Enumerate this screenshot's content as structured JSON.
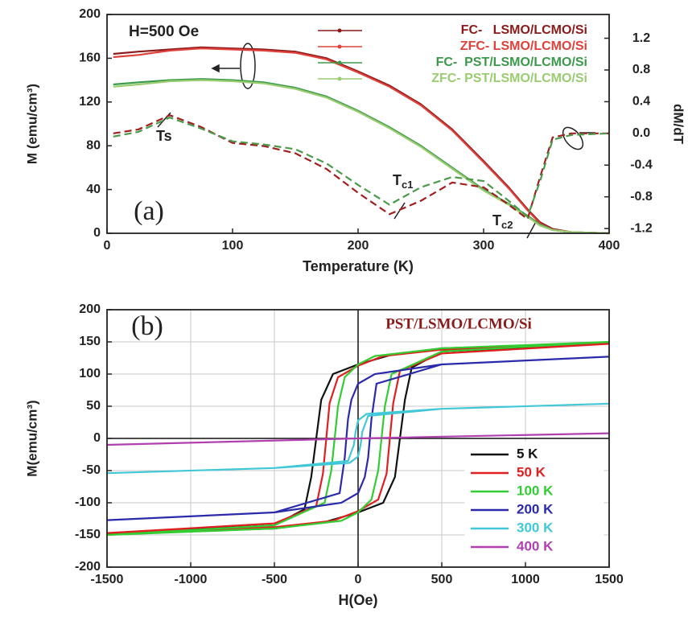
{
  "chart_data": [
    {
      "type": "line",
      "xlabel": "Temperature (K)",
      "ylabel": "M (emu/cm³)",
      "y2label": "dM/dT",
      "field_label": "H=500 Oe",
      "panel_label": "(a)",
      "annotations": [
        {
          "text": "Ts"
        },
        {
          "text": "T",
          "sub": "c1"
        },
        {
          "text": "T",
          "sub": "c2"
        }
      ],
      "xlim": [
        0,
        400
      ],
      "xticks": [
        0,
        100,
        200,
        300,
        400
      ],
      "ylim": [
        0,
        200
      ],
      "yticks": [
        0,
        40,
        80,
        120,
        160,
        200
      ],
      "y2lim": [
        -1.26,
        1.5
      ],
      "y2ticks": [
        1.2,
        0.8,
        0.4,
        {
          "value": 0,
          "label": "0.0"
        },
        -0.4,
        -0.8,
        -1.2
      ],
      "grid": false,
      "legend": "upper right",
      "x": [
        5,
        25,
        50,
        75,
        100,
        125,
        150,
        175,
        200,
        225,
        250,
        275,
        300,
        320,
        335,
        345,
        355,
        370,
        400
      ],
      "series": [
        {
          "name": "FC-   LSMO/LCMO/Si",
          "color": "#8b1a1a",
          "values": [
            164,
            166,
            168,
            170,
            169,
            168,
            166,
            160,
            148,
            135,
            118,
            95,
            66,
            42,
            22,
            10,
            4,
            1,
            0
          ]
        },
        {
          "name": "ZFC- LSMO/LCMO/Si",
          "color": "#e0403a",
          "values": [
            161,
            163,
            167,
            169,
            168,
            167,
            165,
            159,
            147,
            134,
            117,
            94,
            65,
            41,
            21,
            9,
            3,
            1,
            0
          ]
        },
        {
          "name": "FC-  PST/LSMO/LCMO/Si",
          "color": "#3a9a4a",
          "values": [
            136,
            138,
            140,
            141,
            140,
            138,
            133,
            125,
            112,
            97,
            80,
            60,
            40,
            27,
            16,
            8,
            3,
            1,
            0
          ]
        },
        {
          "name": "ZFC- PST/LSMO/LCMO/Si",
          "color": "#9acc70",
          "values": [
            134,
            136,
            139,
            140,
            139,
            137,
            132,
            124,
            111,
            96,
            79,
            59,
            39,
            26,
            15,
            7,
            3,
            1,
            0
          ]
        },
        {
          "color": "#a02020",
          "dash": true,
          "axis": "y2",
          "values": [
            0.0,
            0.05,
            0.23,
            0.08,
            -0.12,
            -0.16,
            -0.25,
            -0.45,
            -0.75,
            -1.02,
            -0.85,
            -0.62,
            -0.68,
            -0.9,
            -1.08,
            -0.55,
            -0.05,
            0.0,
            0.0
          ]
        },
        {
          "color": "#4a9a4a",
          "dash": true,
          "axis": "y2",
          "values": [
            -0.04,
            0.02,
            0.2,
            0.06,
            -0.1,
            -0.14,
            -0.2,
            -0.38,
            -0.65,
            -0.9,
            -0.68,
            -0.55,
            -0.6,
            -0.85,
            -1.05,
            -0.6,
            -0.08,
            -0.02,
            0.0
          ]
        }
      ]
    },
    {
      "type": "line",
      "xlabel": "H(Oe)",
      "ylabel": "M(emu/cm³)",
      "panel_label": "(b)",
      "sample_label": "PST/LSMO/LCMO/Si",
      "xlim": [
        -1500,
        1500
      ],
      "xticks": [
        -1500,
        -1000,
        -500,
        0,
        500,
        1000,
        1500
      ],
      "ylim": [
        -200,
        200
      ],
      "yticks": [
        -200,
        -150,
        -100,
        -50,
        0,
        50,
        100,
        150,
        200
      ],
      "grid": true,
      "origin_lines": true,
      "legend": "lower right",
      "series": [
        {
          "name": "5 K",
          "color": "#111111",
          "x": [
            -1500,
            -500,
            -200,
            0,
            150,
            220,
            250,
            280,
            320,
            500,
            1500,
            500,
            200,
            0,
            -150,
            -220,
            -250,
            -280,
            -320,
            -500,
            -1500
          ],
          "values": [
            -148,
            -140,
            -130,
            -115,
            -100,
            -60,
            0,
            60,
            110,
            135,
            148,
            140,
            130,
            115,
            100,
            60,
            0,
            -60,
            -110,
            -135,
            -148
          ]
        },
        {
          "name": "50 K",
          "color": "#e02020",
          "x": [
            -1500,
            -500,
            -150,
            0,
            120,
            170,
            190,
            210,
            250,
            500,
            1500,
            500,
            150,
            0,
            -120,
            -170,
            -190,
            -210,
            -250,
            -500,
            -1500
          ],
          "values": [
            -147,
            -138,
            -128,
            -113,
            -95,
            -55,
            0,
            55,
            105,
            132,
            147,
            138,
            128,
            113,
            95,
            55,
            0,
            -55,
            -105,
            -132,
            -147
          ]
        },
        {
          "name": "100 K",
          "color": "#33cc33",
          "x": [
            -1500,
            -500,
            -100,
            0,
            80,
            120,
            140,
            160,
            200,
            500,
            1500,
            500,
            100,
            0,
            -80,
            -120,
            -140,
            -160,
            -200,
            -500,
            -1500
          ],
          "values": [
            -150,
            -140,
            -128,
            -115,
            -95,
            -50,
            0,
            50,
            100,
            135,
            150,
            140,
            128,
            115,
            95,
            50,
            0,
            -50,
            -100,
            -135,
            -150
          ]
        },
        {
          "name": "200 K",
          "color": "#2a2aaa",
          "x": [
            -1500,
            -500,
            -100,
            0,
            40,
            60,
            70,
            80,
            110,
            500,
            1500,
            500,
            100,
            0,
            -40,
            -60,
            -70,
            -80,
            -110,
            -500,
            -1500
          ],
          "values": [
            -127,
            -115,
            -100,
            -85,
            -60,
            -30,
            0,
            30,
            85,
            115,
            127,
            115,
            100,
            85,
            60,
            30,
            0,
            -30,
            -85,
            -115,
            -127
          ]
        },
        {
          "name": "300 K",
          "color": "#40c8d8",
          "x": [
            -1500,
            -500,
            -50,
            0,
            15,
            20,
            25,
            60,
            500,
            1500,
            500,
            50,
            0,
            -15,
            -20,
            -25,
            -60,
            -500,
            -1500
          ],
          "values": [
            -54,
            -46,
            -38,
            -28,
            -10,
            0,
            10,
            35,
            46,
            54,
            46,
            38,
            28,
            10,
            0,
            -10,
            -35,
            -46,
            -54
          ]
        },
        {
          "name": "400 K",
          "color": "#b040b0",
          "x": [
            -1500,
            0,
            1500
          ],
          "values": [
            -10,
            0,
            8
          ]
        }
      ]
    }
  ]
}
